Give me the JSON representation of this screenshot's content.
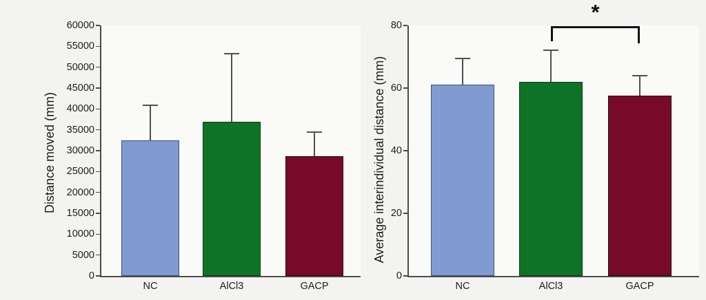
{
  "figure": {
    "background": "#f3f4f1",
    "plot_background": "#fafbf8",
    "axis_color": "#4a4a4a",
    "error_bar_color": "#4f4f4f",
    "bracket_color": "#111111"
  },
  "chart_data": [
    {
      "type": "bar",
      "title": "",
      "xlabel": "",
      "ylabel": "Distance moved (mm)",
      "categories": [
        "NC",
        "AlCl3",
        "GACP"
      ],
      "values": [
        32500,
        37000,
        28700
      ],
      "error_plus": [
        8300,
        16200,
        5800
      ],
      "ylim": [
        0,
        60000
      ],
      "yticks": [
        0,
        5000,
        10000,
        15000,
        20000,
        25000,
        30000,
        35000,
        40000,
        45000,
        50000,
        55000,
        60000
      ],
      "grid": false,
      "legend": null,
      "bar_fill_colors": [
        "#7f9bcf",
        "#0e7326",
        "#770a28"
      ],
      "bar_border_colors": [
        "#3c4f74",
        "#113617",
        "#2e040f"
      ],
      "significance": null
    },
    {
      "type": "bar",
      "title": "",
      "xlabel": "",
      "ylabel": "Average interindividual distance (mm)",
      "categories": [
        "NC",
        "AlCl3",
        "GACP"
      ],
      "values": [
        61,
        62,
        57.5
      ],
      "error_plus": [
        8.5,
        10,
        6.5
      ],
      "ylim": [
        0,
        80
      ],
      "yticks": [
        0,
        20,
        40,
        60,
        80
      ],
      "grid": false,
      "legend": null,
      "bar_fill_colors": [
        "#7f9bcf",
        "#0e7326",
        "#770a28"
      ],
      "bar_border_colors": [
        "#3c4f74",
        "#113617",
        "#2e040f"
      ],
      "significance": {
        "from": "AlCl3",
        "to": "GACP",
        "label": "*"
      }
    }
  ]
}
